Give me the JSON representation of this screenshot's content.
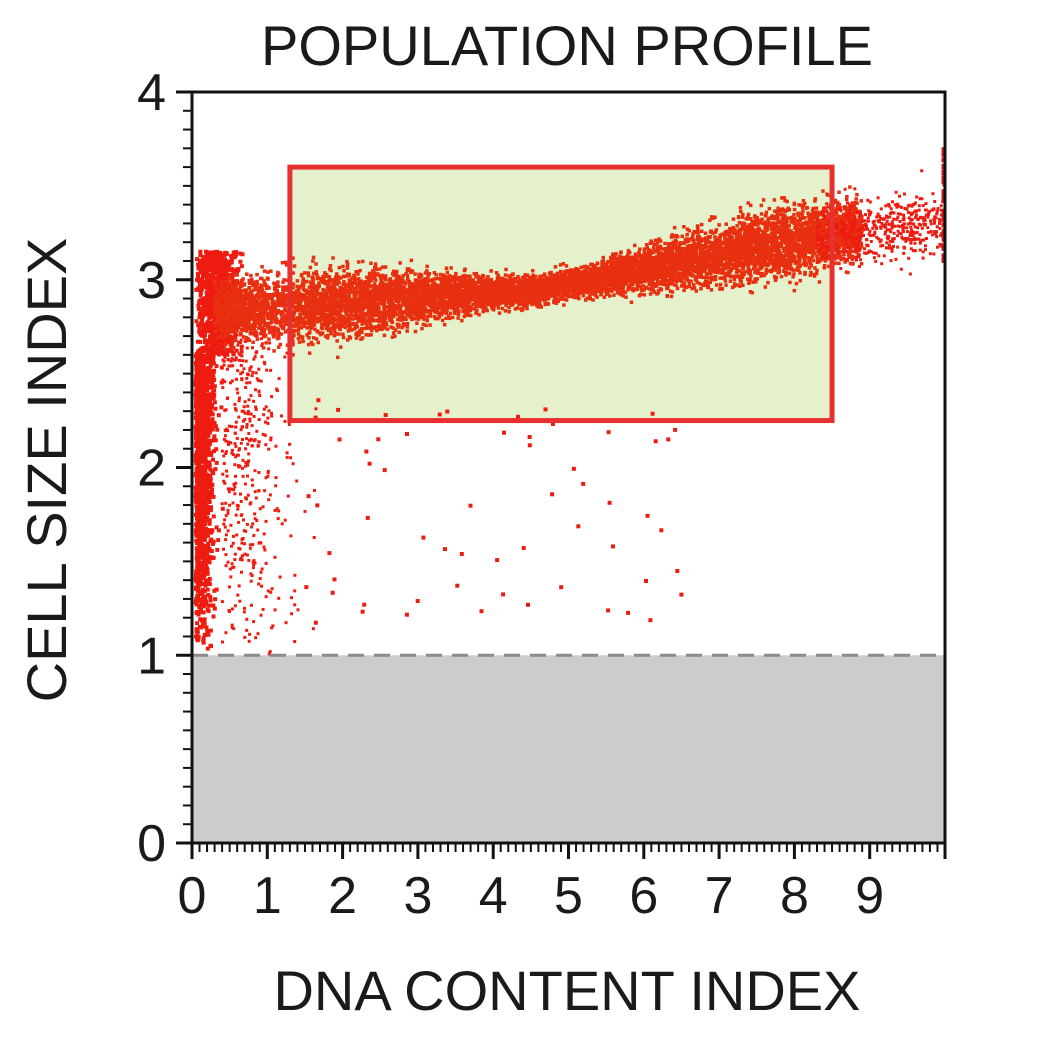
{
  "chart_data": {
    "type": "scatter",
    "title": "POPULATION PROFILE",
    "xlabel": "DNA CONTENT INDEX",
    "ylabel": "CELL SIZE INDEX",
    "xlim": [
      0,
      10
    ],
    "ylim": [
      0,
      4
    ],
    "x_ticks": [
      "0",
      "1",
      "2",
      "3",
      "4",
      "5",
      "6",
      "7",
      "8",
      "9"
    ],
    "y_ticks": [
      "0",
      "1",
      "2",
      "3",
      "4"
    ],
    "threshold": {
      "y": 1,
      "below_shaded": true
    },
    "gate": {
      "x": [
        1.3,
        8.5
      ],
      "y": [
        2.25,
        3.6
      ]
    },
    "population_trend": [
      {
        "x": 0.2,
        "y": 2.85
      },
      {
        "x": 1.3,
        "y": 2.85
      },
      {
        "x": 2.75,
        "y": 2.9
      },
      {
        "x": 4.7,
        "y": 2.95
      },
      {
        "x": 6.5,
        "y": 3.1
      },
      {
        "x": 8.5,
        "y": 3.25
      },
      {
        "x": 10,
        "y": 3.3
      }
    ],
    "colors": {
      "points": "#ee1c10",
      "dense_points": "#e83010",
      "gate_fill": "#e4f1cc",
      "gate_border": "#e83030",
      "shaded_region": "#cccccc",
      "threshold_line": "#8a8a8a"
    }
  }
}
